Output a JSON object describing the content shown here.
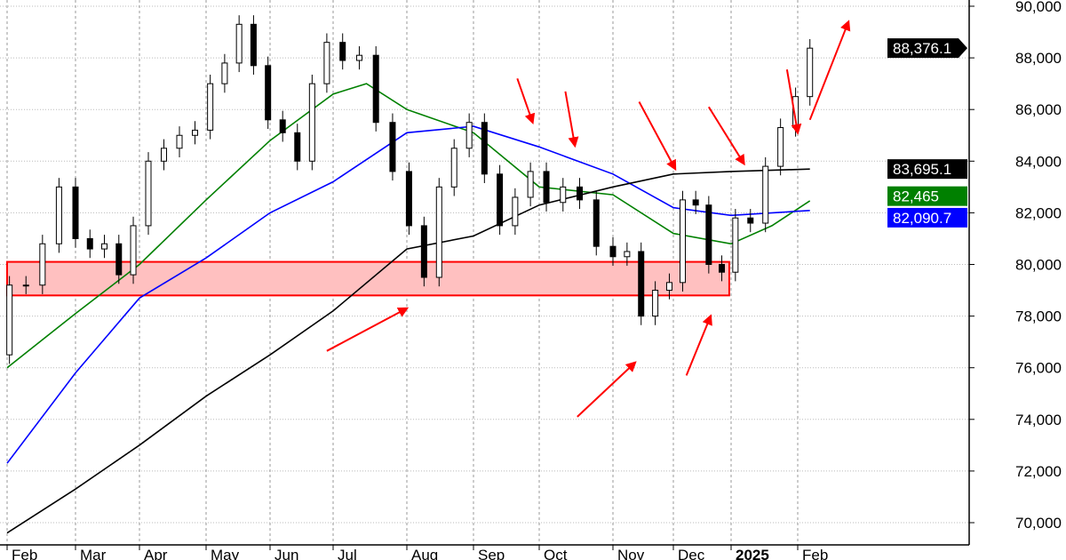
{
  "chart_data": {
    "type": "candlestick",
    "title": "",
    "xlabel": "",
    "ylabel": "",
    "ylim": [
      69000,
      90500
    ],
    "xlim": [
      "2024-02-01",
      "2025-03-08"
    ],
    "grid": true,
    "y_ticks": [
      70000,
      72000,
      74000,
      76000,
      78000,
      80000,
      82000,
      84000,
      86000,
      88000,
      90000
    ],
    "y_tick_labels": [
      "70,000",
      "72,000",
      "74,000",
      "76,000",
      "78,000",
      "80,000",
      "82,000",
      "84,000",
      "86,000",
      "88,000",
      "90,000"
    ],
    "x_ticks": [
      {
        "date": "2024-02-01",
        "label": "Feb"
      },
      {
        "date": "2024-03-01",
        "label": "Mar"
      },
      {
        "date": "2024-04-01",
        "label": "Apr"
      },
      {
        "date": "2024-05-01",
        "label": "May"
      },
      {
        "date": "2024-06-01",
        "label": "Jun"
      },
      {
        "date": "2024-07-01",
        "label": "Jul"
      },
      {
        "date": "2024-08-01",
        "label": "Aug"
      },
      {
        "date": "2024-09-01",
        "label": "Sep"
      },
      {
        "date": "2024-10-01",
        "label": "Oct"
      },
      {
        "date": "2024-11-01",
        "label": "Nov"
      },
      {
        "date": "2024-12-01",
        "label": "Dec"
      },
      {
        "date": "2025-01-01",
        "label": "2025",
        "bold": true
      },
      {
        "date": "2025-02-01",
        "label": "Feb"
      }
    ],
    "price": {
      "dates": [
        "2024-02-02",
        "2024-02-09",
        "2024-02-16",
        "2024-02-23",
        "2024-03-01",
        "2024-03-08",
        "2024-03-15",
        "2024-03-22",
        "2024-03-29",
        "2024-04-05",
        "2024-04-12",
        "2024-04-19",
        "2024-04-26",
        "2024-05-03",
        "2024-05-10",
        "2024-05-17",
        "2024-05-24",
        "2024-05-31",
        "2024-06-07",
        "2024-06-14",
        "2024-06-21",
        "2024-06-28",
        "2024-07-05",
        "2024-07-12",
        "2024-07-19",
        "2024-07-26",
        "2024-08-02",
        "2024-08-09",
        "2024-08-16",
        "2024-08-23",
        "2024-08-30",
        "2024-09-06",
        "2024-09-13",
        "2024-09-20",
        "2024-09-27",
        "2024-10-04",
        "2024-10-11",
        "2024-10-18",
        "2024-10-25",
        "2024-11-01",
        "2024-11-08",
        "2024-11-15",
        "2024-11-22",
        "2024-11-29",
        "2024-12-06",
        "2024-12-13",
        "2024-12-20",
        "2024-12-27",
        "2025-01-03",
        "2025-01-10",
        "2025-01-17",
        "2025-01-24",
        "2025-01-31",
        "2025-02-07"
      ],
      "open_first": 76500,
      "close": [
        79200,
        79200,
        80800,
        83000,
        81000,
        80600,
        80800,
        79600,
        81500,
        84000,
        84500,
        85000,
        85200,
        87000,
        87800,
        89300,
        87700,
        85600,
        85100,
        84000,
        87000,
        88600,
        87900,
        88100,
        85500,
        83600,
        81500,
        79500,
        83000,
        84500,
        85500,
        83500,
        81500,
        82600,
        83600,
        82400,
        83000,
        82500,
        80700,
        80300,
        80500,
        78000,
        79000,
        79300,
        82500,
        82300,
        80000,
        79700,
        81800,
        81600,
        83800,
        85300,
        86500,
        88376
      ]
    },
    "series": [
      {
        "color": "#008000",
        "last_label": "82,465",
        "dates": [
          "2024-02-01",
          "2024-03-01",
          "2024-04-01",
          "2024-05-01",
          "2024-06-01",
          "2024-07-01",
          "2024-07-15",
          "2024-08-01",
          "2024-09-01",
          "2024-10-01",
          "2024-11-01",
          "2024-12-01",
          "2025-01-01",
          "2025-01-20",
          "2025-02-07"
        ],
        "values": [
          76000,
          78100,
          80000,
          82500,
          84800,
          86600,
          87000,
          86000,
          85100,
          83000,
          82700,
          81200,
          80800,
          81500,
          82465
        ]
      },
      {
        "color": "#0000ff",
        "last_label": "82,090.7",
        "dates": [
          "2024-02-01",
          "2024-03-01",
          "2024-04-01",
          "2024-05-01",
          "2024-06-01",
          "2024-07-01",
          "2024-08-01",
          "2024-09-01",
          "2024-10-01",
          "2024-11-01",
          "2024-12-01",
          "2025-01-01",
          "2025-02-07"
        ],
        "values": [
          72300,
          75800,
          78700,
          80250,
          82000,
          83200,
          85100,
          85350,
          84550,
          83500,
          82200,
          81900,
          82090.7
        ]
      },
      {
        "color": "#000000",
        "last_label": "83,695.1",
        "dates": [
          "2024-02-01",
          "2024-03-01",
          "2024-04-01",
          "2024-05-01",
          "2024-06-01",
          "2024-07-01",
          "2024-08-01",
          "2024-09-01",
          "2024-10-01",
          "2024-11-01",
          "2024-12-01",
          "2025-01-01",
          "2025-02-07"
        ],
        "values": [
          69600,
          71300,
          73000,
          74900,
          76500,
          78200,
          80600,
          81100,
          82300,
          83000,
          83500,
          83600,
          83695.1
        ]
      }
    ],
    "last_price_label": "88,376.1",
    "zone": {
      "from": "2024-02-01",
      "to": "2024-12-31",
      "low": 78800,
      "high": 80100,
      "fill": "#ffc0c0",
      "stroke": "#ff0000"
    },
    "arrows": [
      {
        "from": [
          "2024-06-28",
          76650
        ],
        "to": [
          "2024-08-01",
          78300
        ]
      },
      {
        "from": [
          "2024-10-17",
          74100
        ],
        "to": [
          "2024-11-12",
          76200
        ]
      },
      {
        "from": [
          "2024-12-08",
          75700
        ],
        "to": [
          "2024-12-21",
          78000
        ]
      },
      {
        "from": [
          "2024-09-21",
          87200
        ],
        "to": [
          "2024-09-28",
          85500
        ]
      },
      {
        "from": [
          "2024-10-12",
          86700
        ],
        "to": [
          "2024-10-16",
          84600
        ]
      },
      {
        "from": [
          "2024-11-14",
          86300
        ],
        "to": [
          "2024-12-02",
          83700
        ]
      },
      {
        "from": [
          "2024-12-20",
          86100
        ],
        "to": [
          "2025-01-07",
          83900
        ]
      },
      {
        "from": [
          "2025-01-27",
          87550
        ],
        "to": [
          "2025-02-01",
          85100
        ]
      },
      {
        "from": [
          "2025-02-07",
          85600
        ],
        "to": [
          "2025-02-26",
          89400
        ]
      }
    ],
    "arrow_color": "#ff0000"
  }
}
